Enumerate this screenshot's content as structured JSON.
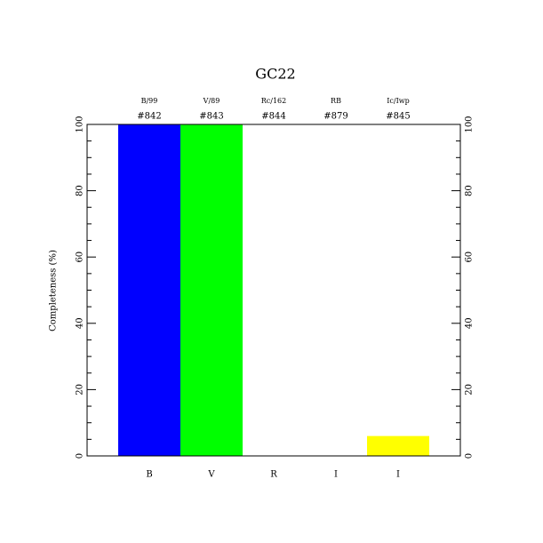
{
  "chart_data": {
    "type": "bar",
    "title": "GC22",
    "ylabel": "Completeness (%)",
    "categories": [
      "B",
      "V",
      "R",
      "I",
      "I"
    ],
    "filters": [
      "B/99",
      "V/89",
      "Rc/162",
      "RB",
      "Ic/Iwp"
    ],
    "ids": [
      "#842",
      "#843",
      "#844",
      "#879",
      "#845"
    ],
    "values": [
      100,
      100,
      0,
      0,
      6
    ],
    "colors": [
      "#0000ff",
      "#00ff00",
      "#ff0000",
      "#ff00ff",
      "#ffff00"
    ],
    "ylim": [
      0,
      100
    ],
    "yticks": [
      0,
      20,
      40,
      60,
      80,
      100
    ],
    "yticks_minor": [
      5,
      10,
      15,
      25,
      30,
      35,
      45,
      50,
      55,
      65,
      70,
      75,
      85,
      90,
      95
    ]
  }
}
